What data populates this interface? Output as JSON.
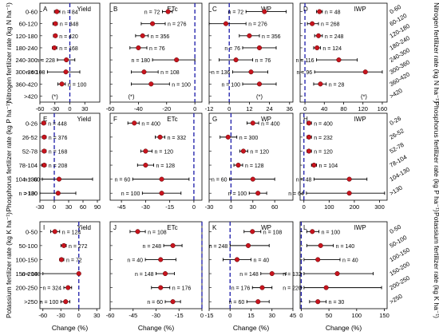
{
  "panel_rows": [
    {
      "row_id": "nitrogen",
      "y_axis_label_left": "Nitrogen fertilizer rate (kg N ha⁻¹)",
      "y_axis_label_right": "Nitrogen fertilizer rate (kg N ha⁻¹)",
      "categories_left": [
        "0-60",
        "60-120",
        "120-180",
        "180-240",
        "240-300",
        "300-360",
        "360-420",
        ">420"
      ],
      "categories_right": [
        "0-60",
        "60-120",
        "120-180",
        "180-240",
        "240-300",
        "300-360",
        "360-420",
        ">420"
      ]
    },
    {
      "row_id": "phosphorus",
      "y_axis_label_left": "Phosphorus fertilizer rate (kg P ha⁻¹)",
      "y_axis_label_right": "Phosphorus fertilizer rate (kg P ha⁻¹)",
      "categories_left": [
        "0-26",
        "26-52",
        "52-78",
        "78-104",
        "104-130",
        ">130"
      ],
      "categories_right": [
        "0-26",
        "26-52",
        "52-78",
        "78-104",
        "104-130",
        ">130"
      ]
    },
    {
      "row_id": "potassium",
      "y_axis_label_left": "Potassium fertilizer rate (kg K ha⁻¹)",
      "y_axis_label_right": "Potassium fertilizer rate (kg K ha⁻¹)",
      "categories_left": [
        "0-50",
        "50-100",
        "100-150",
        "150-200",
        "200-250",
        ">250"
      ],
      "categories_right": [
        "0-50",
        "50-100",
        "100-150",
        "150-200",
        "200-250",
        ">250"
      ]
    }
  ],
  "x_axis_label": "Change (%)",
  "colors": {
    "point": "#c8141e",
    "zero_line": "#1a1aa8",
    "axis": "#000000"
  },
  "chart_data": [
    {
      "panel": "A",
      "title": "Yield",
      "type": "scatter",
      "row": 0,
      "col": 0,
      "xlim": [
        -60,
        60
      ],
      "xticks": [
        -60,
        -30,
        0,
        30
      ],
      "xtick_labels": [
        "-60",
        "-30",
        "0",
        "30"
      ],
      "points": [
        {
          "category": "0-60",
          "mean": -26,
          "low": -31,
          "high": -20,
          "n": "n = 84"
        },
        {
          "category": "60-120",
          "mean": -29,
          "low": -34,
          "high": -25,
          "n": "n = 348"
        },
        {
          "category": "120-180",
          "mean": -29,
          "low": -33,
          "high": -26,
          "n": "n = 420"
        },
        {
          "category": "180-240",
          "mean": -31,
          "low": -35,
          "high": -26,
          "n": "n = 168"
        },
        {
          "category": "240-300",
          "mean": -7,
          "low": -25,
          "high": 10,
          "n": "n = 228"
        },
        {
          "category": "300-360",
          "mean": -8,
          "low": -45,
          "high": 20,
          "n": "n = 108"
        },
        {
          "category": "360-420",
          "mean": -16,
          "low": -24,
          "high": -9,
          "n": "n = 100"
        }
      ],
      "annotations": [
        {
          "text": "(*)",
          "category": ">420",
          "x": -30
        }
      ]
    },
    {
      "panel": "B",
      "title": "ETc",
      "type": "scatter",
      "row": 0,
      "col": 1,
      "xlim": [
        -60,
        5
      ],
      "xticks": [
        -60,
        -40,
        -20,
        0
      ],
      "xtick_labels": [
        "-60",
        "-40",
        "-20",
        "0"
      ],
      "points": [
        {
          "category": "0-60",
          "mean": -19,
          "low": -23,
          "high": -16,
          "n": "n = 72"
        },
        {
          "category": "60-120",
          "mean": -30,
          "low": -38,
          "high": -21,
          "n": "n = 276"
        },
        {
          "category": "120-180",
          "mean": -37,
          "low": -42,
          "high": -33,
          "n": "n = 356"
        },
        {
          "category": "180-240",
          "mean": -40,
          "low": -46,
          "high": -34,
          "n": "n = 76"
        },
        {
          "category": "240-300",
          "mean": -13,
          "low": -30,
          "high": 0,
          "n": "n = 180"
        },
        {
          "category": "300-360",
          "mean": -36,
          "low": -45,
          "high": -26,
          "n": "n = 108"
        },
        {
          "category": "360-420",
          "mean": -31,
          "low": -45,
          "high": -18,
          "n": "n = 100"
        }
      ],
      "annotations": [
        {
          "text": "(*)",
          "category": ">420",
          "x": -45
        }
      ]
    },
    {
      "panel": "C",
      "title": "WP",
      "type": "scatter",
      "row": 0,
      "col": 2,
      "xlim": [
        -12,
        38
      ],
      "xticks": [
        -12,
        0,
        12,
        24,
        36
      ],
      "xtick_labels": [
        "-12",
        "0",
        "12",
        "24",
        "36"
      ],
      "points": [
        {
          "category": "0-60",
          "mean": 21,
          "low": 10,
          "high": 34,
          "n": "n = 72"
        },
        {
          "category": "60-120",
          "mean": -2,
          "low": -12,
          "high": 10,
          "n": "n = 276"
        },
        {
          "category": "120-180",
          "mean": 12,
          "low": 6,
          "high": 18,
          "n": "n = 356"
        },
        {
          "category": "180-240",
          "mean": 18,
          "low": 8,
          "high": 28,
          "n": "n = 76"
        },
        {
          "category": "240-300",
          "mean": 4,
          "low": -6,
          "high": 14,
          "n": "n = 76"
        },
        {
          "category": "300-360",
          "mean": 13,
          "low": 2,
          "high": 23,
          "n": "n = 136"
        },
        {
          "category": "360-420",
          "mean": 18,
          "low": 8,
          "high": 28,
          "n": "n = 100"
        }
      ],
      "annotations": [
        {
          "text": "(*)",
          "category": ">420",
          "x": 18
        }
      ]
    },
    {
      "panel": "D",
      "title": "IWP",
      "type": "scatter",
      "row": 0,
      "col": 3,
      "xlim": [
        -10,
        170
      ],
      "xticks": [
        0,
        40,
        80,
        120,
        160
      ],
      "xtick_labels": [
        "0",
        "40",
        "80",
        "120",
        "160"
      ],
      "points": [
        {
          "category": "0-60",
          "mean": 30,
          "low": 24,
          "high": 36,
          "n": "n = 48"
        },
        {
          "category": "60-120",
          "mean": 15,
          "low": 5,
          "high": 28,
          "n": "n = 268"
        },
        {
          "category": "120-180",
          "mean": 28,
          "low": 20,
          "high": 36,
          "n": "n = 248"
        },
        {
          "category": "180-240",
          "mean": 25,
          "low": 18,
          "high": 32,
          "n": "n = 124"
        },
        {
          "category": "240-300",
          "mean": 70,
          "low": 24,
          "high": 108,
          "n": "n = 116"
        },
        {
          "category": "300-360",
          "mean": 125,
          "low": 20,
          "high": 160,
          "n": "n = 96"
        },
        {
          "category": "360-420",
          "mean": 32,
          "low": 18,
          "high": 44,
          "n": "n = 28"
        }
      ],
      "annotations": [
        {
          "text": "(*)",
          "category": ">420",
          "x": 122
        }
      ]
    },
    {
      "panel": "E",
      "title": "Yield",
      "type": "scatter",
      "row": 1,
      "col": 0,
      "xlim": [
        -30,
        95
      ],
      "xticks": [
        -30,
        0,
        30,
        60,
        90
      ],
      "xtick_labels": [
        "-30",
        "0",
        "30",
        "60",
        "90"
      ],
      "points": [
        {
          "category": "0-26",
          "mean": -22,
          "low": -26,
          "high": -18,
          "n": "n = 448"
        },
        {
          "category": "26-52",
          "mean": -21,
          "low": -25,
          "high": -17,
          "n": "n = 376"
        },
        {
          "category": "52-78",
          "mean": -21,
          "low": -25,
          "high": -17,
          "n": "n = 168"
        },
        {
          "category": "78-104",
          "mean": -21,
          "low": -26,
          "high": -17,
          "n": "n = 208"
        },
        {
          "category": "104-130",
          "mean": 10,
          "low": -25,
          "high": 80,
          "n": "n = 60"
        },
        {
          "category": ">130",
          "mean": 8,
          "low": -30,
          "high": 45,
          "n": "n = 100"
        }
      ],
      "annotations": []
    },
    {
      "panel": "F",
      "title": "ETc",
      "type": "scatter",
      "row": 1,
      "col": 1,
      "xlim": [
        -52,
        5
      ],
      "xticks": [
        -45,
        -30,
        -15,
        0
      ],
      "xtick_labels": [
        "-45",
        "-30",
        "-15",
        "0"
      ],
      "points": [
        {
          "category": "0-26",
          "mean": -37,
          "low": -41,
          "high": -34,
          "n": "n = 400"
        },
        {
          "category": "26-52",
          "mean": -21,
          "low": -24,
          "high": -18,
          "n": "n = 332"
        },
        {
          "category": "52-78",
          "mean": -30,
          "low": -33,
          "high": -26,
          "n": "n = 120"
        },
        {
          "category": "78-104",
          "mean": -30,
          "low": -35,
          "high": -25,
          "n": "n = 128"
        },
        {
          "category": "104-130",
          "mean": -20,
          "low": -38,
          "high": -3,
          "n": "n = 60"
        },
        {
          "category": ">130",
          "mean": -20,
          "low": -32,
          "high": -8,
          "n": "n = 100"
        }
      ],
      "annotations": []
    },
    {
      "panel": "G",
      "title": "WP",
      "type": "scatter",
      "row": 1,
      "col": 2,
      "xlim": [
        -30,
        85
      ],
      "xticks": [
        -30,
        0,
        30,
        60
      ],
      "xtick_labels": [
        "-30",
        "0",
        "30",
        "60"
      ],
      "points": [
        {
          "category": "0-26",
          "mean": 30,
          "low": 22,
          "high": 38,
          "n": "n = 400"
        },
        {
          "category": "26-52",
          "mean": -4,
          "low": -15,
          "high": 8,
          "n": "n = 300"
        },
        {
          "category": "52-78",
          "mean": 17,
          "low": 12,
          "high": 23,
          "n": "n = 120"
        },
        {
          "category": "78-104",
          "mean": 10,
          "low": 4,
          "high": 16,
          "n": "n = 128"
        },
        {
          "category": "104-130",
          "mean": 30,
          "low": -2,
          "high": 60,
          "n": "n = 60"
        },
        {
          "category": ">130",
          "mean": 37,
          "low": 25,
          "high": 49,
          "n": "n = 100"
        }
      ],
      "annotations": []
    },
    {
      "panel": "H",
      "title": "IWP",
      "type": "scatter",
      "row": 1,
      "col": 3,
      "xlim": [
        -15,
        330
      ],
      "xticks": [
        0,
        100,
        200,
        300
      ],
      "xtick_labels": [
        "0",
        "100",
        "200",
        "300"
      ],
      "points": [
        {
          "category": "0-26",
          "mean": 20,
          "low": 12,
          "high": 30,
          "n": "n = 400"
        },
        {
          "category": "26-52",
          "mean": 20,
          "low": 12,
          "high": 30,
          "n": "n = 232"
        },
        {
          "category": "52-78",
          "mean": 20,
          "low": 12,
          "high": 30,
          "n": "n = 120"
        },
        {
          "category": "78-104",
          "mean": 40,
          "low": 30,
          "high": 50,
          "n": "n = 104"
        },
        {
          "category": "104-130",
          "mean": 180,
          "low": 40,
          "high": 250,
          "n": "n = 48"
        },
        {
          "category": ">130",
          "mean": 180,
          "low": 10,
          "high": 320,
          "n": "n = 64"
        }
      ],
      "annotations": []
    },
    {
      "panel": "I",
      "title": "Yield",
      "type": "scatter",
      "row": 2,
      "col": 0,
      "xlim": [
        -65,
        35
      ],
      "xticks": [
        -60,
        -30,
        0,
        30
      ],
      "xtick_labels": [
        "-60",
        "-30",
        "0",
        "30"
      ],
      "points": [
        {
          "category": "0-50",
          "mean": -40,
          "low": -47,
          "high": -32,
          "n": "n = 124"
        },
        {
          "category": "50-100",
          "mean": -25,
          "low": -30,
          "high": -21,
          "n": "n = 272"
        },
        {
          "category": "100-150",
          "mean": -29,
          "low": -32,
          "high": -25,
          "n": "n = 72"
        },
        {
          "category": "150-200",
          "mean": 0,
          "low": -60,
          "high": 2,
          "n": "n = 148"
        },
        {
          "category": "200-250",
          "mean": -18,
          "low": -25,
          "high": -12,
          "n": "n = 324"
        },
        {
          "category": ">250",
          "mean": -22,
          "low": -30,
          "high": -15,
          "n": "n = 100"
        }
      ],
      "annotations": []
    },
    {
      "panel": "J",
      "title": "ETc",
      "type": "scatter",
      "row": 2,
      "col": 1,
      "xlim": [
        -60,
        0
      ],
      "xticks": [
        -60,
        -45,
        -30,
        -15,
        0
      ],
      "xtick_labels": [
        "-60",
        "-45",
        "-30",
        "-15",
        "0"
      ],
      "points": [
        {
          "category": "0-50",
          "mean": -42,
          "low": -47,
          "high": -37,
          "n": "n = 108"
        },
        {
          "category": "50-100",
          "mean": -19,
          "low": -25,
          "high": -13,
          "n": "n = 248"
        },
        {
          "category": "100-150",
          "mean": -27,
          "low": -37,
          "high": -17,
          "n": "n = 40"
        },
        {
          "category": "150-200",
          "mean": -24,
          "low": -30,
          "high": -18,
          "n": "n = 148"
        },
        {
          "category": "200-250",
          "mean": -27,
          "low": -33,
          "high": -21,
          "n": "n = 176"
        },
        {
          "category": ">250",
          "mean": -19,
          "low": -24,
          "high": -14,
          "n": "n = 60"
        }
      ],
      "annotations": []
    },
    {
      "panel": "K",
      "title": "WP",
      "type": "scatter",
      "row": 2,
      "col": 2,
      "xlim": [
        -15,
        45
      ],
      "xticks": [
        -15,
        0,
        15,
        30,
        45
      ],
      "xtick_labels": [
        "-15",
        "0",
        "15",
        "30",
        "45"
      ],
      "points": [
        {
          "category": "0-50",
          "mean": 16,
          "low": 10,
          "high": 22,
          "n": "n = 108"
        },
        {
          "category": "50-100",
          "mean": 13,
          "low": 0,
          "high": 28,
          "n": "n = 248"
        },
        {
          "category": "100-150",
          "mean": 5,
          "low": -5,
          "high": 15,
          "n": "n = 40"
        },
        {
          "category": "150-200",
          "mean": 30,
          "low": 22,
          "high": 40,
          "n": "n = 148"
        },
        {
          "category": "200-250",
          "mean": 23,
          "low": 16,
          "high": 30,
          "n": "n = 176"
        },
        {
          "category": ">250",
          "mean": 20,
          "low": 12,
          "high": 28,
          "n": "n = 60"
        }
      ],
      "annotations": []
    },
    {
      "panel": "L",
      "title": "IWP",
      "type": "scatter",
      "row": 2,
      "col": 3,
      "xlim": [
        -2,
        155
      ],
      "xticks": [
        0,
        50,
        100,
        150
      ],
      "xtick_labels": [
        "0",
        "50",
        "100",
        "150"
      ],
      "points": [
        {
          "category": "0-50",
          "mean": 20,
          "low": 10,
          "high": 32,
          "n": "n = 100"
        },
        {
          "category": "50-100",
          "mean": 35,
          "low": 10,
          "high": 58,
          "n": "n = 140"
        },
        {
          "category": "100-150",
          "mean": 30,
          "low": 5,
          "high": 70,
          "n": "n = 40"
        },
        {
          "category": "150-200",
          "mean": 65,
          "low": 5,
          "high": 130,
          "n": "n = 132"
        },
        {
          "category": "200-250",
          "mean": 45,
          "low": 5,
          "high": 145,
          "n": "n = 220"
        },
        {
          "category": ">250",
          "mean": 30,
          "low": 15,
          "high": 45,
          "n": "n = 30"
        }
      ],
      "annotations": []
    }
  ]
}
